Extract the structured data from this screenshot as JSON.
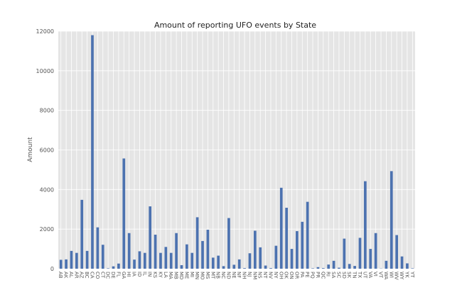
{
  "chart_data": {
    "type": "bar",
    "title": "Amount of reporting UFO events by State",
    "xlabel": "",
    "ylabel": "Amount",
    "ylim": [
      0,
      12000
    ],
    "yticks": [
      0,
      2000,
      4000,
      6000,
      8000,
      10000,
      12000
    ],
    "grid": true,
    "bar_color": "#4c72b0",
    "plot_bg": "#e5e5e5",
    "categories": [
      "AB",
      "AK",
      "AL",
      "AR",
      "AZ",
      "BC",
      "CA",
      "CO",
      "CT",
      "DC",
      "DE",
      "FL",
      "GA",
      "HI",
      "IA",
      "ID",
      "IL",
      "IN",
      "KS",
      "KY",
      "LA",
      "MA",
      "MB",
      "MD",
      "ME",
      "MI",
      "MN",
      "MO",
      "MS",
      "MT",
      "NB",
      "NC",
      "ND",
      "NE",
      "NF",
      "NH",
      "NJ",
      "NM",
      "NS",
      "NT",
      "NV",
      "NY",
      "OH",
      "OK",
      "ON",
      "OR",
      "PA",
      "PE",
      "PQ",
      "PR",
      "QC",
      "RI",
      "SA",
      "SC",
      "SD",
      "SK",
      "TN",
      "TX",
      "UT",
      "VA",
      "VI",
      "VT",
      "WA",
      "WI",
      "WV",
      "WY",
      "YK",
      "YT"
    ],
    "values": [
      450,
      470,
      900,
      800,
      3480,
      900,
      11800,
      2090,
      1210,
      20,
      120,
      260,
      5570,
      1800,
      460,
      880,
      800,
      3150,
      1720,
      800,
      1100,
      800,
      1800,
      180,
      1230,
      800,
      2600,
      1400,
      1970,
      560,
      660,
      130,
      2560,
      200,
      470,
      30,
      780,
      1920,
      1080,
      160,
      30,
      1160,
      4090,
      3080,
      1000,
      1900,
      2370,
      3380,
      20,
      80,
      30,
      210,
      400,
      50,
      1520,
      240,
      140,
      1560,
      4420,
      1000,
      1800,
      10,
      400,
      4930,
      1700,
      620,
      270,
      20
    ]
  }
}
